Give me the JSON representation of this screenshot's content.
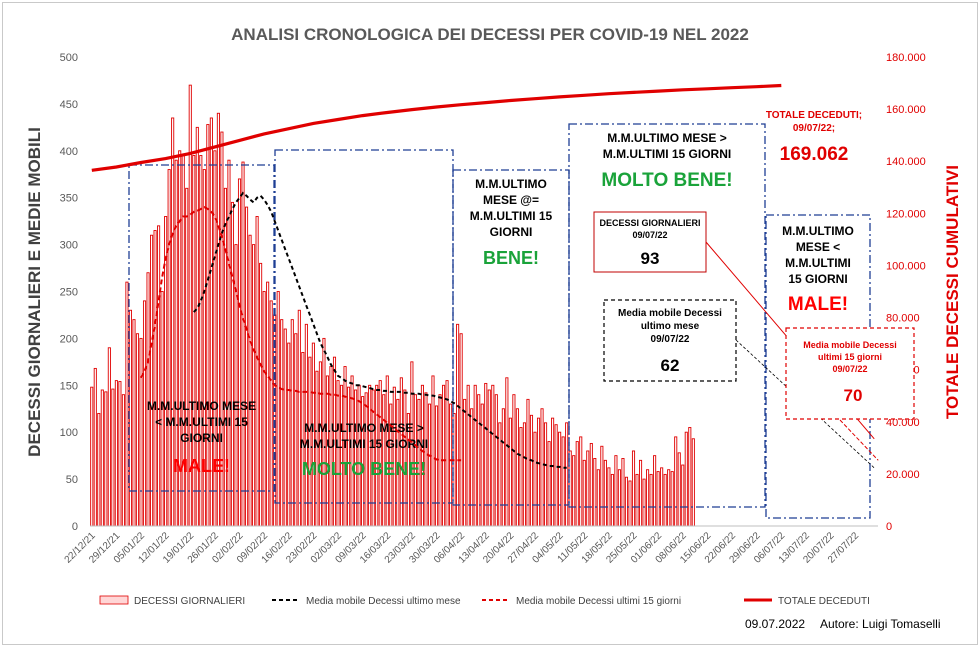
{
  "chart_data": {
    "type": "bar",
    "title": "ANALISI CRONOLOGICA DEI DECESSI PER COVID-19 NEL 2022",
    "ylabel": "DECESSI GIORNALIERI E MEDIE MOBILI",
    "y2label": "TOTALE DECESSI CUMULATIVI",
    "ylim": [
      0,
      500
    ],
    "y2lim": [
      0,
      180000
    ],
    "yticks": [
      "0",
      "50",
      "100",
      "150",
      "200",
      "250",
      "300",
      "350",
      "400",
      "450",
      "500"
    ],
    "y2ticks": [
      "0",
      "20.000",
      "40.000",
      "60.000",
      "80.000",
      "100.000",
      "120.000",
      "140.000",
      "160.000",
      "180.000"
    ],
    "xticks": [
      "22/12/21",
      "29/12/21",
      "05/01/22",
      "12/01/22",
      "19/01/22",
      "26/01/22",
      "02/02/22",
      "09/02/22",
      "16/02/22",
      "23/02/22",
      "02/03/22",
      "09/03/22",
      "16/03/22",
      "23/03/22",
      "30/03/22",
      "06/04/22",
      "13/04/22",
      "20/04/22",
      "27/04/22",
      "04/05/22",
      "11/05/22",
      "18/05/22",
      "25/05/22",
      "01/06/22",
      "08/06/22",
      "15/06/22",
      "22/06/22",
      "29/06/22",
      "06/07/22",
      "13/07/22",
      "20/07/22",
      "27/07/22"
    ],
    "x_start": "22/12/21",
    "grid": false,
    "legend": "bottom",
    "series": [
      {
        "name": "DECESSI GIORNALIERI",
        "type": "bar",
        "color": "#e00000",
        "values": [
          148,
          168,
          120,
          145,
          143,
          190,
          146,
          155,
          154,
          140,
          260,
          230,
          220,
          205,
          200,
          240,
          270,
          310,
          315,
          320,
          250,
          330,
          380,
          435,
          390,
          400,
          395,
          360,
          470,
          395,
          425,
          395,
          380,
          428,
          435,
          400,
          440,
          420,
          360,
          390,
          345,
          300,
          370,
          388,
          340,
          310,
          300,
          330,
          280,
          250,
          260,
          240,
          225,
          250,
          220,
          210,
          195,
          220,
          205,
          230,
          185,
          215,
          180,
          195,
          165,
          175,
          200,
          160,
          170,
          180,
          155,
          150,
          170,
          148,
          160,
          145,
          150,
          138,
          142,
          150,
          145,
          150,
          155,
          140,
          160,
          130,
          148,
          135,
          158,
          145,
          120,
          175,
          140,
          135,
          150,
          142,
          130,
          160,
          128,
          140,
          150,
          155,
          130,
          120,
          215,
          205,
          135,
          150,
          125,
          150,
          140,
          130,
          152,
          145,
          150,
          140,
          110,
          125,
          158,
          115,
          140,
          125,
          105,
          110,
          135,
          118,
          100,
          115,
          125,
          110,
          90,
          115,
          108,
          100,
          95,
          110,
          80,
          75,
          90,
          95,
          70,
          80,
          88,
          72,
          60,
          85,
          70,
          62,
          55,
          75,
          60,
          72,
          52,
          48,
          80,
          55,
          70,
          50,
          60,
          55,
          75,
          58,
          62,
          55,
          60,
          58,
          95,
          78,
          65,
          100,
          105,
          93
        ]
      },
      {
        "name": "Media mobile Decessi ultimo mese",
        "type": "line",
        "dash": "dashed",
        "color": "#000000",
        "start_index": 29,
        "values": [
          228,
          232,
          240,
          250,
          262,
          275,
          288,
          300,
          312,
          322,
          330,
          338,
          345,
          350,
          355,
          352,
          348,
          345,
          350,
          352,
          348,
          342,
          335,
          325,
          315,
          305,
          295,
          285,
          275,
          265,
          255,
          245,
          235,
          225,
          215,
          205,
          195,
          188,
          180,
          172,
          166,
          160,
          158,
          155,
          153,
          152,
          150,
          150,
          149,
          148,
          147,
          146,
          145,
          145,
          144,
          144,
          143,
          143,
          143,
          143,
          142,
          142,
          141,
          141,
          141,
          140,
          140,
          139,
          139,
          138,
          137,
          136,
          135,
          133,
          131,
          128,
          125,
          122,
          119,
          116,
          113,
          110,
          107,
          104,
          101,
          98,
          95,
          92,
          89,
          86,
          83,
          80,
          77,
          75,
          73,
          71,
          70,
          68,
          67,
          66,
          65,
          64,
          64,
          63,
          63,
          62,
          62
        ]
      },
      {
        "name": "Media mobile Decessi ultimi 15 giorni",
        "type": "line",
        "dash": "dashed",
        "color": "#e00000",
        "start_index": 14,
        "values": [
          158,
          165,
          175,
          195,
          215,
          240,
          265,
          285,
          300,
          312,
          320,
          325,
          330,
          330,
          332,
          335,
          336,
          338,
          340,
          338,
          335,
          330,
          320,
          308,
          295,
          280,
          265,
          250,
          235,
          222,
          210,
          198,
          188,
          180,
          172,
          165,
          160,
          155,
          150,
          148,
          146,
          145,
          145,
          144,
          144,
          143,
          143,
          143,
          143,
          142,
          142,
          141,
          141,
          141,
          140,
          140,
          139,
          139,
          138,
          137,
          136,
          135,
          133,
          131,
          128,
          125,
          122,
          119,
          116,
          113,
          110,
          107,
          104,
          101,
          98,
          95,
          92,
          89,
          86,
          83,
          80,
          77,
          75,
          73,
          71,
          70,
          70,
          70,
          70,
          70,
          70,
          70
        ]
      },
      {
        "name": "TOTALE DECEDUTI",
        "type": "line",
        "color": "#e00000",
        "axis": "right",
        "values": [
          136500,
          137800,
          139500,
          141000,
          143000,
          145500,
          148000,
          150500,
          152500,
          154500,
          156000,
          157500,
          158700,
          159800,
          160800,
          161700,
          162500,
          163300,
          164000,
          164700,
          165300,
          165900,
          166400,
          166900,
          167400,
          167800,
          168200,
          168600,
          169062
        ]
      }
    ],
    "annotations": [
      {
        "text": [
          "M.M.ULTIMO MESE",
          "< M.M.ULTIMI 15",
          "GIORNI"
        ],
        "verdict": "MALE!",
        "verdict_color": "#ff0000"
      },
      {
        "text": [
          "M.M.ULTIMO MESE >",
          "M.M.ULTIMI 15 GIORNI"
        ],
        "verdict": "MOLTO BENE!",
        "verdict_color": "#1aa33a"
      },
      {
        "text": [
          "M.M.ULTIMO",
          "MESE @=",
          "M.M.ULTIMI 15",
          "GIORNI"
        ],
        "verdict": "BENE!",
        "verdict_color": "#1aa33a"
      },
      {
        "text": [
          "M.M.ULTIMO MESE >",
          "M.M.ULTIMI 15 GIORNI"
        ],
        "verdict": "MOLTO BENE!",
        "verdict_color": "#1aa33a"
      },
      {
        "text": [
          "M.M.ULTIMO",
          "MESE <",
          "M.M.ULTIMI",
          "15 GIORNI"
        ],
        "verdict": "MALE!",
        "verdict_color": "#ff0000"
      }
    ],
    "callouts": {
      "total": {
        "label": [
          "TOTALE DECEDUTI;",
          "09/07/22;"
        ],
        "value": "169.062"
      },
      "daily": {
        "label": [
          "DECESSI GIORNALIERI",
          "09/07/22"
        ],
        "value": "93"
      },
      "mm_month": {
        "label": [
          "Media mobile Decessi",
          "ultimo mese",
          "09/07/22"
        ],
        "value": "62"
      },
      "mm_15": {
        "label": [
          "Media mobile Decessi",
          "ultimi 15 giorni",
          "09/07/22"
        ],
        "value": "70"
      }
    }
  },
  "footer": {
    "date": "09.07.2022",
    "author": "Autore: Luigi Tomaselli"
  }
}
